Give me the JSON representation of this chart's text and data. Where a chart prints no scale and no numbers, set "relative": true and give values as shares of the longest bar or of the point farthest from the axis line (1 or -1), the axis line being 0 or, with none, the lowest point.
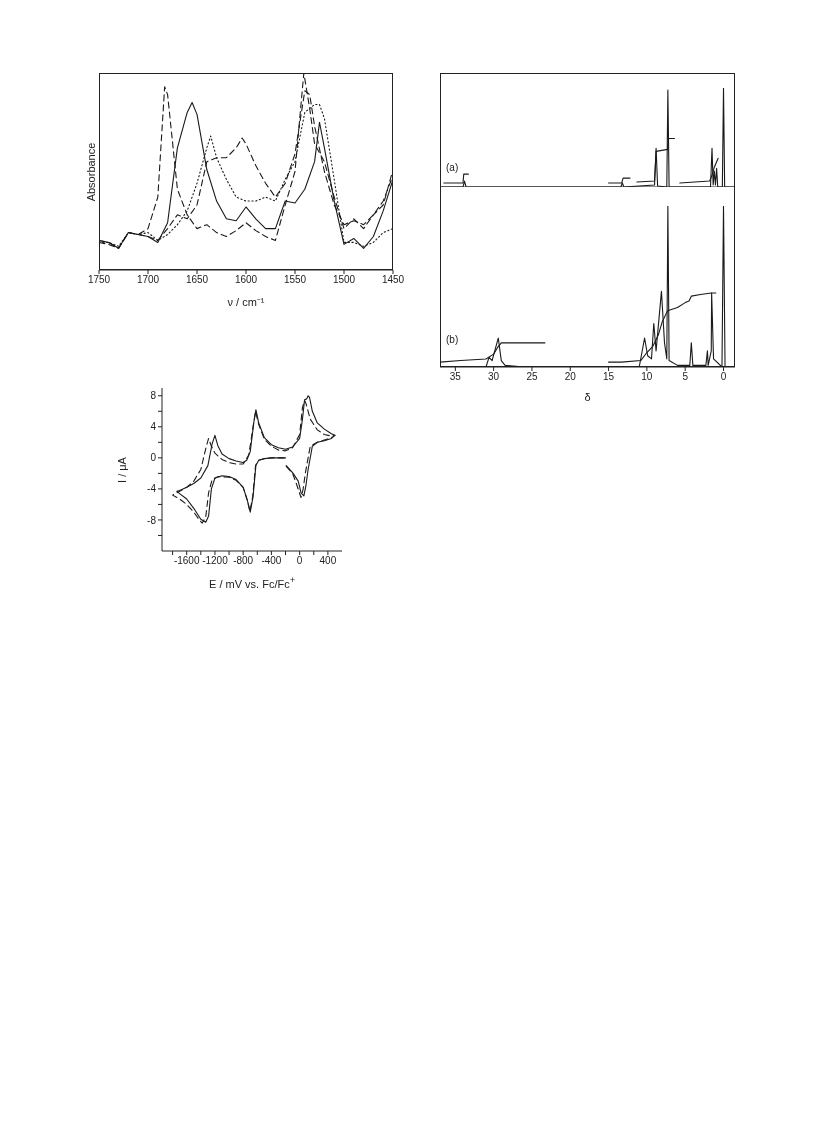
{
  "chart_data": [
    {
      "type": "line",
      "xlabel": "ν / cm⁻¹",
      "ylabel": "Absorbance",
      "relative": true,
      "xlim": [
        1750,
        1450
      ],
      "xticks": [
        1750,
        1700,
        1650,
        1600,
        1550,
        1500,
        1450
      ],
      "series": [
        {
          "color": "#1a1a1a",
          "line_style": "solid",
          "x": [
            1750,
            1740,
            1730,
            1720,
            1710,
            1700,
            1690,
            1680,
            1670,
            1660,
            1655,
            1650,
            1640,
            1630,
            1620,
            1610,
            1600,
            1590,
            1580,
            1570,
            1560,
            1550,
            1540,
            1530,
            1525,
            1520,
            1510,
            1500,
            1490,
            1480,
            1470,
            1460,
            1450
          ],
          "values": [
            0.15,
            0.14,
            0.11,
            0.19,
            0.18,
            0.17,
            0.14,
            0.24,
            0.62,
            0.8,
            0.85,
            0.79,
            0.51,
            0.35,
            0.26,
            0.25,
            0.32,
            0.26,
            0.21,
            0.21,
            0.35,
            0.34,
            0.41,
            0.55,
            0.75,
            0.62,
            0.35,
            0.13,
            0.16,
            0.11,
            0.17,
            0.3,
            0.46
          ]
        },
        {
          "color": "#1a1a1a",
          "line_style": "dashed",
          "x": [
            1750,
            1740,
            1730,
            1720,
            1710,
            1700,
            1690,
            1683,
            1680,
            1670,
            1660,
            1650,
            1640,
            1630,
            1620,
            1610,
            1600,
            1590,
            1580,
            1570,
            1560,
            1550,
            1541,
            1535,
            1530,
            1520,
            1510,
            1500,
            1490,
            1480,
            1470,
            1460,
            1450
          ],
          "values": [
            0.14,
            0.13,
            0.11,
            0.19,
            0.18,
            0.21,
            0.37,
            0.93,
            0.89,
            0.41,
            0.28,
            0.21,
            0.23,
            0.19,
            0.17,
            0.2,
            0.24,
            0.2,
            0.17,
            0.15,
            0.33,
            0.5,
            1.0,
            0.82,
            0.64,
            0.55,
            0.37,
            0.21,
            0.26,
            0.21,
            0.28,
            0.33,
            0.51
          ]
        },
        {
          "color": "#1a1a1a",
          "line_style": "dotted",
          "x": [
            1750,
            1740,
            1730,
            1720,
            1710,
            1700,
            1690,
            1680,
            1670,
            1660,
            1650,
            1640,
            1636,
            1630,
            1620,
            1610,
            1600,
            1590,
            1580,
            1570,
            1560,
            1550,
            1540,
            1530,
            1525,
            1520,
            1510,
            1500,
            1490,
            1480,
            1470,
            1460,
            1450
          ],
          "values": [
            0.14,
            0.14,
            0.12,
            0.19,
            0.18,
            0.19,
            0.15,
            0.18,
            0.23,
            0.3,
            0.44,
            0.62,
            0.68,
            0.57,
            0.46,
            0.37,
            0.35,
            0.35,
            0.37,
            0.35,
            0.46,
            0.55,
            0.8,
            0.84,
            0.84,
            0.77,
            0.46,
            0.14,
            0.14,
            0.12,
            0.14,
            0.19,
            0.21
          ]
        },
        {
          "color": "#1a1a1a",
          "line_style": "dashed",
          "x": [
            1750,
            1740,
            1730,
            1720,
            1710,
            1700,
            1690,
            1680,
            1670,
            1660,
            1650,
            1640,
            1630,
            1620,
            1610,
            1604,
            1600,
            1590,
            1580,
            1570,
            1560,
            1550,
            1540,
            1535,
            1530,
            1520,
            1510,
            1500,
            1490,
            1480,
            1470,
            1460,
            1450
          ],
          "values": [
            0.15,
            0.14,
            0.11,
            0.19,
            0.18,
            0.17,
            0.15,
            0.21,
            0.28,
            0.26,
            0.33,
            0.55,
            0.57,
            0.57,
            0.62,
            0.67,
            0.64,
            0.53,
            0.44,
            0.37,
            0.44,
            0.59,
            0.91,
            0.89,
            0.73,
            0.5,
            0.33,
            0.23,
            0.25,
            0.23,
            0.28,
            0.35,
            0.48
          ]
        }
      ]
    },
    {
      "type": "line",
      "xlabel": "E / mV vs. Fc/Fc$^{+}$",
      "ylabel": "I / μA",
      "xlim": [
        -1950,
        600
      ],
      "xticks": [
        {
          "value": -1800,
          "label": null
        },
        -1600,
        {
          "value": -1400,
          "label": null
        },
        -1200,
        {
          "value": -1000,
          "label": null
        },
        -800,
        {
          "value": -600,
          "label": null
        },
        -400,
        {
          "value": -200,
          "label": null
        },
        0,
        {
          "value": 200,
          "label": null
        },
        400
      ],
      "ylim": [
        -12,
        9
      ],
      "yticks": [
        {
          "value": -10,
          "label": null
        },
        -8,
        {
          "value": -6,
          "label": null
        },
        -4,
        {
          "value": -2,
          "label": null
        },
        0,
        {
          "value": 2,
          "label": null
        },
        4,
        {
          "value": 6,
          "label": null
        },
        8
      ],
      "series": [
        {
          "color": "#1a1a1a",
          "line_style": "solid",
          "x": [
            -190,
            -100,
            -20,
            20,
            60,
            90,
            120,
            180,
            250,
            350,
            450,
            500,
            450,
            350,
            250,
            180,
            140,
            120,
            100,
            70,
            40,
            0,
            -100,
            -200,
            -300,
            -400,
            -500,
            -580,
            -620,
            -650,
            -700,
            -750,
            -800,
            -900,
            -1000,
            -1100,
            -1160,
            -1200,
            -1240,
            -1300,
            -1400,
            -1500,
            -1600,
            -1700,
            -1740,
            -1700,
            -1600,
            -1500,
            -1400,
            -1330,
            -1290,
            -1250,
            -1200,
            -1100,
            -1000,
            -900,
            -800,
            -740,
            -700,
            -660,
            -620,
            -580,
            -500,
            -400,
            -300,
            -200
          ],
          "values": [
            -1.0,
            -1.9,
            -3.0,
            -4.5,
            -4.9,
            -3.5,
            -1.5,
            1.5,
            2.0,
            2.2,
            2.5,
            2.9,
            3.1,
            3.7,
            4.5,
            6.0,
            7.8,
            8.0,
            7.6,
            7.5,
            5.0,
            2.5,
            1.4,
            1.1,
            1.3,
            1.7,
            2.6,
            4.5,
            6.2,
            4.5,
            0.8,
            -0.3,
            -0.6,
            -0.4,
            -0.1,
            0.5,
            1.6,
            2.9,
            1.8,
            -1.0,
            -2.6,
            -3.3,
            -3.8,
            -4.2,
            -4.3,
            -4.6,
            -5.3,
            -6.5,
            -7.9,
            -8.3,
            -7.5,
            -4.0,
            -2.6,
            -2.3,
            -2.4,
            -2.8,
            -3.8,
            -5.5,
            -7.0,
            -5.0,
            -1.0,
            -0.3,
            -0.1,
            0,
            0,
            0
          ]
        },
        {
          "color": "#1a1a1a",
          "line_style": "dashed",
          "x": [
            -190,
            -100,
            -40,
            0,
            20,
            50,
            80,
            150,
            250,
            350,
            450,
            500,
            450,
            350,
            250,
            150,
            90,
            70,
            40,
            0,
            -100,
            -200,
            -300,
            -400,
            -500,
            -580,
            -625,
            -660,
            -720,
            -800,
            -900,
            -1000,
            -1100,
            -1200,
            -1250,
            -1290,
            -1330,
            -1400,
            -1500,
            -1600,
            -1700,
            -1800,
            -1700,
            -1600,
            -1500,
            -1420,
            -1380,
            -1330,
            -1290,
            -1240,
            -1150,
            -1000,
            -900,
            -800,
            -740,
            -705,
            -665,
            -625,
            -580,
            -500,
            -400,
            -300,
            -200
          ],
          "values": [
            -1.1,
            -2.0,
            -3.5,
            -4.6,
            -5.1,
            -4.0,
            -2.0,
            1.5,
            2.0,
            2.3,
            2.6,
            2.9,
            2.8,
            3.0,
            3.6,
            5.0,
            7.0,
            7.4,
            6.5,
            3.0,
            1.3,
            0.9,
            1.0,
            1.5,
            2.4,
            4.3,
            6.0,
            4.0,
            0.4,
            -0.8,
            -0.8,
            -0.6,
            -0.2,
            0.6,
            1.5,
            2.5,
            1.2,
            -1.5,
            -3.0,
            -3.8,
            -4.3,
            -4.8,
            -5.3,
            -6.0,
            -7.0,
            -8.0,
            -8.4,
            -7.6,
            -4.5,
            -2.8,
            -2.4,
            -2.5,
            -2.9,
            -3.8,
            -5.5,
            -6.9,
            -5.0,
            -1.0,
            -0.3,
            -0.1,
            0,
            0,
            0
          ]
        }
      ]
    },
    {
      "type": "line",
      "relative": true,
      "tick_labels": false,
      "xlim": [
        37,
        -1.5
      ],
      "xticks": [
        35,
        30,
        25,
        20,
        15,
        10,
        5,
        0
      ],
      "annotations": [
        "(a)"
      ],
      "series": [
        {
          "color": "#1a1a1a",
          "x": [
            37,
            34.0,
            33.8,
            33.6,
            13.4,
            13.2,
            13.0,
            9.0,
            8.8,
            8.6,
            7.4,
            7.26,
            7.1,
            1.7,
            1.5,
            1.35,
            1.2,
            1.05,
            0.9,
            0.75,
            0.15,
            0,
            -0.15,
            -1.5
          ],
          "values": [
            0,
            0,
            0.06,
            0,
            0,
            0.04,
            0,
            0.02,
            0.39,
            0.01,
            0,
            0.98,
            0,
            0,
            0.39,
            0.02,
            0.16,
            0.02,
            0.19,
            0,
            0,
            1.0,
            0,
            0
          ]
        },
        {
          "color": "#1a1a1a",
          "x": [
            36.5,
            34.0,
            33.9,
            33.3,
            33.0,
            15,
            13.3,
            13.1,
            12.2,
            12.0,
            11.3,
            9.0,
            8.8,
            7.3,
            7.2,
            6.4,
            6.0,
            5.7,
            1.8,
            1.5,
            1.2,
            0.7
          ],
          "values": [
            0.04,
            0.04,
            0.13,
            0.13,
            null,
            0.04,
            0.04,
            0.09,
            0.09,
            null,
            0.05,
            0.06,
            0.36,
            0.38,
            0.49,
            0.49,
            null,
            0.04,
            0.06,
            0.12,
            0.2,
            0.29
          ]
        }
      ]
    },
    {
      "type": "line",
      "relative": true,
      "xlabel": "δ",
      "xlim": [
        37,
        -1.5
      ],
      "xticks": [
        35,
        30,
        25,
        20,
        15,
        10,
        5,
        0
      ],
      "annotations": [
        "(b)"
      ],
      "series": [
        {
          "color": "#1a1a1a",
          "x": [
            37,
            31,
            30.6,
            30.2,
            29.4,
            29.0,
            28.5,
            26,
            11,
            10.3,
            9.9,
            9.4,
            9.1,
            8.8,
            8.1,
            7.7,
            7.4,
            7.26,
            7.1,
            6,
            4.4,
            4.2,
            4.0,
            2.3,
            2.1,
            2.0,
            1.6,
            1.55,
            1.3,
            0.2,
            0,
            -0.2,
            -1.5
          ],
          "values": [
            0,
            0,
            0.06,
            0.04,
            0.18,
            0.04,
            0.01,
            0,
            0,
            0.18,
            0.07,
            0.05,
            0.27,
            0.1,
            0.47,
            0.15,
            0.05,
            1.0,
            0.04,
            0.01,
            0.01,
            0.15,
            0.01,
            0.01,
            0.1,
            0.01,
            0.1,
            0.46,
            0.05,
            0,
            1.0,
            0,
            0
          ]
        },
        {
          "color": "#1a1a1a",
          "x": [
            37,
            34.3,
            31,
            30,
            29.5,
            29,
            28.5,
            23.3,
            20,
            15,
            13.3,
            10.8,
            10,
            9.2,
            8.5,
            8.0,
            7.5,
            7.3,
            6,
            5,
            4.5,
            4.2,
            3,
            1.6,
            1.0
          ],
          "values": [
            0.03,
            0.04,
            0.05,
            0.08,
            0.12,
            0.15,
            0.15,
            0.15,
            null,
            0.03,
            0.03,
            0.04,
            0.09,
            0.13,
            0.2,
            0.28,
            0.33,
            0.35,
            0.37,
            0.4,
            0.41,
            0.44,
            0.45,
            0.46,
            0.46
          ]
        }
      ]
    }
  ]
}
